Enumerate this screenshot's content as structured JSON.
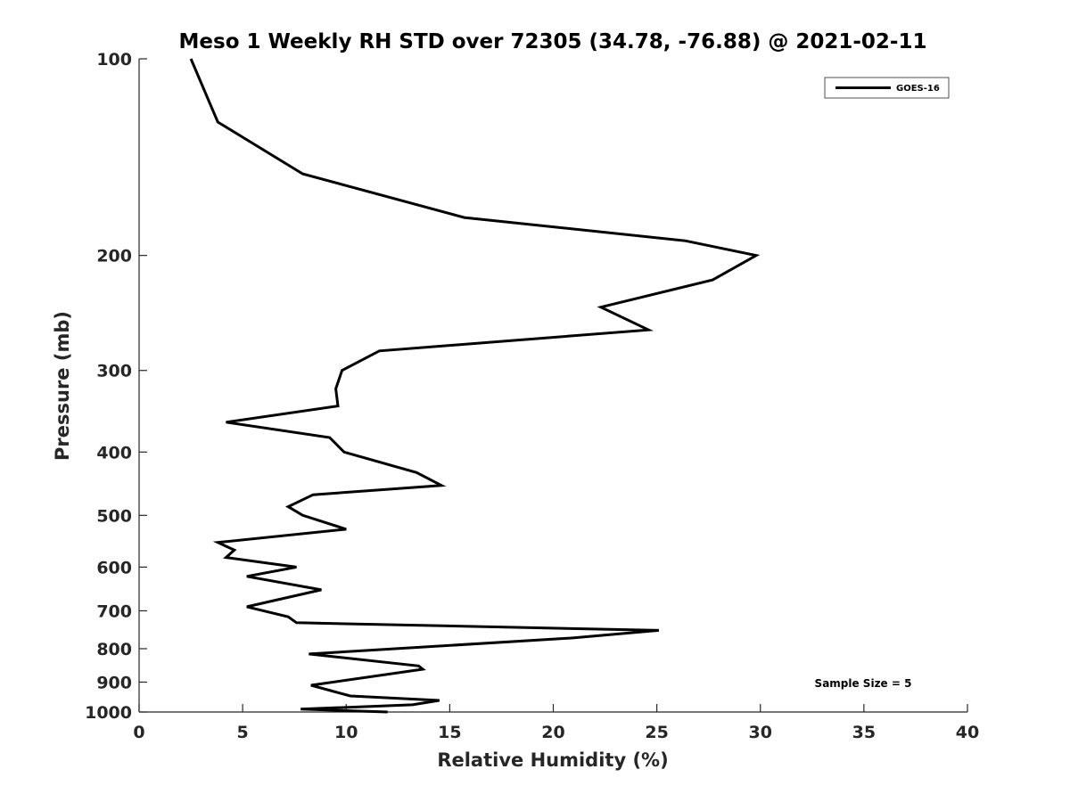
{
  "chart_data": {
    "type": "line",
    "title": "Meso 1 Weekly RH STD over 72305 (34.78, -76.88) @ 2021-02-11",
    "xlabel": "Relative Humidity (%)",
    "ylabel": "Pressure (mb)",
    "xlim": [
      0,
      40
    ],
    "ylim": [
      100,
      1000
    ],
    "y_scale": "log",
    "y_reversed": true,
    "x_ticks": [
      0,
      5,
      10,
      15,
      20,
      25,
      30,
      35,
      40
    ],
    "y_ticks": [
      100,
      200,
      300,
      400,
      500,
      600,
      700,
      800,
      900,
      1000
    ],
    "grid": false,
    "legend_position": "top-right",
    "annotation": "Sample Size = 5",
    "series": [
      {
        "name": "GOES-16",
        "color": "#000000",
        "points": [
          [
            2.5,
            100
          ],
          [
            3.8,
            125
          ],
          [
            7.9,
            150
          ],
          [
            15.7,
            175
          ],
          [
            26.4,
            190
          ],
          [
            29.8,
            200
          ],
          [
            27.7,
            218
          ],
          [
            22.3,
            240
          ],
          [
            24.6,
            260
          ],
          [
            11.6,
            280
          ],
          [
            9.8,
            300
          ],
          [
            9.5,
            320
          ],
          [
            9.6,
            340
          ],
          [
            4.2,
            360
          ],
          [
            9.2,
            380
          ],
          [
            9.9,
            400
          ],
          [
            13.4,
            430
          ],
          [
            14.6,
            450
          ],
          [
            8.4,
            465
          ],
          [
            7.2,
            485
          ],
          [
            7.9,
            500
          ],
          [
            10.0,
            525
          ],
          [
            3.8,
            550
          ],
          [
            4.6,
            565
          ],
          [
            4.2,
            580
          ],
          [
            7.6,
            600
          ],
          [
            5.2,
            620
          ],
          [
            8.8,
            650
          ],
          [
            5.2,
            690
          ],
          [
            7.2,
            715
          ],
          [
            7.6,
            730
          ],
          [
            25.1,
            750
          ],
          [
            21.0,
            770
          ],
          [
            8.2,
            815
          ],
          [
            13.5,
            850
          ],
          [
            13.7,
            860
          ],
          [
            8.3,
            910
          ],
          [
            10.2,
            945
          ],
          [
            14.5,
            960
          ],
          [
            13.2,
            975
          ],
          [
            7.8,
            990
          ],
          [
            12.0,
            1000
          ]
        ]
      }
    ]
  }
}
